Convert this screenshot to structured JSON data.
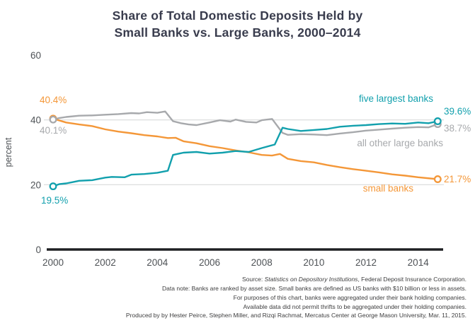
{
  "header": {
    "line1": "Share of Total Domestic Deposits Held by",
    "line2": "Small Banks vs. Large Banks, 2000–2014"
  },
  "colors": {
    "teal": "#12a0ad",
    "orange": "#f49738",
    "gray": "#a7a9ac",
    "tick": "#4e5256",
    "axis": "#1f2023",
    "grid": "#d8d9da",
    "title": "#393c4d"
  },
  "chart_data": {
    "type": "line",
    "title": "Share of Total Domestic Deposits Held by Small Banks vs. Large Banks, 2000–2014",
    "xlabel": "",
    "ylabel": "percent",
    "xlim": [
      2000,
      2014.85
    ],
    "ylim": [
      0,
      60
    ],
    "yticks": [
      0,
      20,
      40,
      60
    ],
    "xticks": [
      2000,
      2002,
      2004,
      2006,
      2008,
      2010,
      2012,
      2014
    ],
    "gridlines_y": [
      20,
      40
    ],
    "legend_position": "inline-labels",
    "series": [
      {
        "name": "five largest banks",
        "color": "#12a0ad",
        "start_label": "19.5%",
        "end_label": "39.6%",
        "points": [
          [
            2000,
            19.5
          ],
          [
            2000.25,
            20.2
          ],
          [
            2000.5,
            20.4
          ],
          [
            2000.75,
            20.8
          ],
          [
            2001,
            21.2
          ],
          [
            2001.5,
            21.4
          ],
          [
            2002,
            22.2
          ],
          [
            2002.25,
            22.4
          ],
          [
            2002.75,
            22.3
          ],
          [
            2003,
            23.1
          ],
          [
            2003.5,
            23.3
          ],
          [
            2004,
            23.7
          ],
          [
            2004.4,
            24.3
          ],
          [
            2004.6,
            29.2
          ],
          [
            2005,
            29.9
          ],
          [
            2005.5,
            30.1
          ],
          [
            2006,
            29.6
          ],
          [
            2006.5,
            29.9
          ],
          [
            2007,
            30.4
          ],
          [
            2007.5,
            30.1
          ],
          [
            2008,
            31.3
          ],
          [
            2008.5,
            32.4
          ],
          [
            2008.8,
            37.6
          ],
          [
            2009,
            37.2
          ],
          [
            2009.5,
            36.6
          ],
          [
            2010,
            36.9
          ],
          [
            2010.5,
            37.2
          ],
          [
            2011,
            37.9
          ],
          [
            2011.5,
            38.2
          ],
          [
            2012,
            38.4
          ],
          [
            2012.5,
            38.7
          ],
          [
            2013,
            38.9
          ],
          [
            2013.5,
            38.8
          ],
          [
            2014,
            39.2
          ],
          [
            2014.4,
            39.0
          ],
          [
            2014.75,
            39.6
          ]
        ]
      },
      {
        "name": "all other large banks",
        "color": "#a7a9ac",
        "start_label": "40.1%",
        "end_label": "38.7%",
        "points": [
          [
            2000,
            40.1
          ],
          [
            2000.25,
            40.6
          ],
          [
            2000.5,
            40.9
          ],
          [
            2001,
            41.3
          ],
          [
            2001.5,
            41.4
          ],
          [
            2002,
            41.6
          ],
          [
            2002.5,
            41.8
          ],
          [
            2003,
            42.1
          ],
          [
            2003.3,
            42.0
          ],
          [
            2003.6,
            42.4
          ],
          [
            2004,
            42.2
          ],
          [
            2004.3,
            42.6
          ],
          [
            2004.6,
            39.6
          ],
          [
            2004.9,
            39.0
          ],
          [
            2005.2,
            38.6
          ],
          [
            2005.5,
            38.4
          ],
          [
            2006,
            39.2
          ],
          [
            2006.4,
            39.9
          ],
          [
            2006.8,
            39.5
          ],
          [
            2007,
            40.1
          ],
          [
            2007.4,
            39.4
          ],
          [
            2007.8,
            39.2
          ],
          [
            2008,
            39.9
          ],
          [
            2008.4,
            40.3
          ],
          [
            2008.8,
            36.0
          ],
          [
            2009,
            35.4
          ],
          [
            2009.5,
            35.6
          ],
          [
            2010,
            35.5
          ],
          [
            2010.5,
            35.3
          ],
          [
            2011,
            35.8
          ],
          [
            2011.5,
            36.2
          ],
          [
            2012,
            36.7
          ],
          [
            2012.5,
            37.0
          ],
          [
            2013,
            37.3
          ],
          [
            2013.5,
            37.6
          ],
          [
            2014,
            37.8
          ],
          [
            2014.4,
            37.7
          ],
          [
            2014.75,
            38.7
          ]
        ]
      },
      {
        "name": "small banks",
        "color": "#f49738",
        "start_label": "40.4%",
        "end_label": "21.7%",
        "points": [
          [
            2000,
            40.4
          ],
          [
            2000.5,
            39.2
          ],
          [
            2001,
            38.6
          ],
          [
            2001.5,
            38.1
          ],
          [
            2002,
            37.1
          ],
          [
            2002.5,
            36.4
          ],
          [
            2003,
            35.9
          ],
          [
            2003.5,
            35.3
          ],
          [
            2004,
            34.9
          ],
          [
            2004.4,
            34.4
          ],
          [
            2004.7,
            34.5
          ],
          [
            2005,
            33.4
          ],
          [
            2005.5,
            32.8
          ],
          [
            2006,
            31.9
          ],
          [
            2006.5,
            31.3
          ],
          [
            2007,
            30.6
          ],
          [
            2007.5,
            30.0
          ],
          [
            2008,
            29.2
          ],
          [
            2008.4,
            29.0
          ],
          [
            2008.7,
            29.5
          ],
          [
            2009,
            28.0
          ],
          [
            2009.5,
            27.3
          ],
          [
            2010,
            26.9
          ],
          [
            2010.5,
            26.1
          ],
          [
            2011,
            25.4
          ],
          [
            2011.5,
            24.8
          ],
          [
            2012,
            24.3
          ],
          [
            2012.5,
            23.8
          ],
          [
            2013,
            23.2
          ],
          [
            2013.5,
            22.8
          ],
          [
            2014,
            22.3
          ],
          [
            2014.75,
            21.7
          ]
        ]
      }
    ]
  },
  "footer": {
    "source_prefix": "Source: ",
    "source_italic": "Statistics on Depository Institutions",
    "source_suffix": ", Federal Deposit Insurance Corporation.",
    "line2": "Data note: Banks are ranked by asset size. Small banks are defined as US banks with $10 billion or less in assets.",
    "line3": "For purposes of this chart, banks were aggregated under their bank holding companies.",
    "line4": "Available data did not permit thrifts to be aggregated under their holding companies.",
    "line5": "Produced by by Hester Peirce, Stephen Miller, and Rizqi Rachmat, Mercatus Center at George Mason University, Mar. 11, 2015."
  }
}
